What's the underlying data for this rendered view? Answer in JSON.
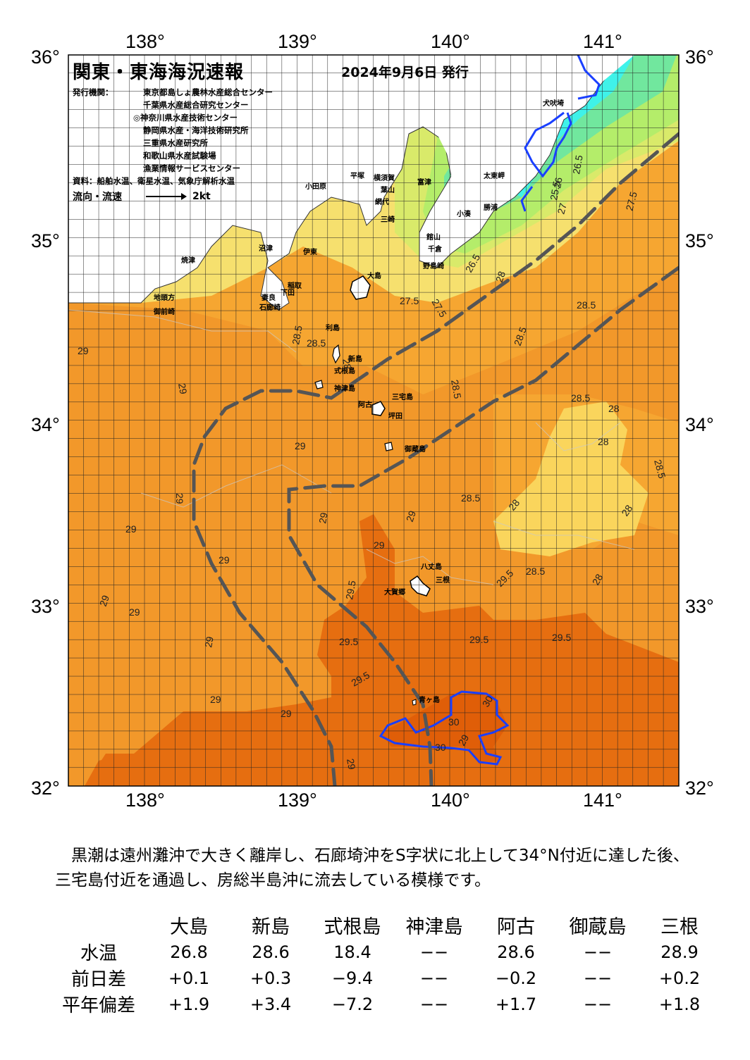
{
  "title": "関東・東海海況速報",
  "issue_date": "2024年9月6日 発行",
  "issuers": {
    "label": "発行機関：",
    "orgs": [
      "東京都島しょ農林水産総合センター",
      "千葉県水産総合研究センター",
      "◎神奈川県水産技術センター",
      "静岡県水産・海洋技術研究所",
      "三重県水産研究所",
      "和歌山県水産試験場",
      "漁業情報サービスセンター"
    ]
  },
  "sources": "資料：船舶水温、衛星水温、気象庁解析水温",
  "legend": {
    "flow_label": "流向・流速",
    "speed_label": "2kt"
  },
  "axes": {
    "lon_ticks": [
      "138°",
      "139°",
      "140°",
      "141°"
    ],
    "lat_ticks": [
      "36°",
      "35°",
      "34°",
      "33°",
      "32°"
    ]
  },
  "colors": {
    "land": "#ffffff",
    "t_lt25": "#3ff2e9",
    "t_25": "#71e79e",
    "t_26": "#b4ed6a",
    "t_27": "#f6e06e",
    "t_28": "#fad55c",
    "t_28_5": "#f6a631",
    "t_29": "#f2982a",
    "t_29_5": "#e66e10",
    "t_30": "#e05e08",
    "kuroshio_axis": "#555555",
    "isotherm_blue": "#1a3fff"
  },
  "place_labels": [
    {
      "id": "inubosaki",
      "text": "犬吠埼"
    },
    {
      "id": "taitomisaki",
      "text": "太東岬"
    },
    {
      "id": "katsuura",
      "text": "勝浦"
    },
    {
      "id": "kominato",
      "text": "小湊"
    },
    {
      "id": "futtsu",
      "text": "富津"
    },
    {
      "id": "yokosuka",
      "text": "横須賀"
    },
    {
      "id": "hayama",
      "text": "葉山"
    },
    {
      "id": "hiratsuka",
      "text": "平塚"
    },
    {
      "id": "odawara",
      "text": "小田原"
    },
    {
      "id": "misaki",
      "text": "三崎"
    },
    {
      "id": "tateyama",
      "text": "館山"
    },
    {
      "id": "chikura",
      "text": "千倉"
    },
    {
      "id": "nojimazaki",
      "text": "野島崎"
    },
    {
      "id": "ajiro",
      "text": "網代"
    },
    {
      "id": "ito",
      "text": "伊東"
    },
    {
      "id": "numazu",
      "text": "沼津"
    },
    {
      "id": "yaizu",
      "text": "焼津"
    },
    {
      "id": "omaezaki",
      "text": "御前崎"
    },
    {
      "id": "chikyukata",
      "text": "地頭方"
    },
    {
      "id": "inatori",
      "text": "稲取"
    },
    {
      "id": "shimoda",
      "text": "下田"
    },
    {
      "id": "mera",
      "text": "妻良"
    },
    {
      "id": "irozaki",
      "text": "石廊崎"
    },
    {
      "id": "oshima",
      "text": "大島"
    },
    {
      "id": "toshima",
      "text": "利島"
    },
    {
      "id": "niijima",
      "text": "新島"
    },
    {
      "id": "shikinejima",
      "text": "式根島"
    },
    {
      "id": "kozushima",
      "text": "神津島"
    },
    {
      "id": "miyakejima",
      "text": "三宅島"
    },
    {
      "id": "ako",
      "text": "阿古"
    },
    {
      "id": "tsubota",
      "text": "坪田"
    },
    {
      "id": "mikurajima",
      "text": "御蔵島"
    },
    {
      "id": "hachijojima",
      "text": "八丈島"
    },
    {
      "id": "hachijo_oga",
      "text": "大賀郷"
    },
    {
      "id": "mitsune",
      "text": "三根"
    },
    {
      "id": "aogashima",
      "text": "青ヶ島"
    }
  ],
  "isotherm_labels": [
    "26.5",
    "26",
    "25.5",
    "27.5",
    "27",
    "26.5",
    "28",
    "27.5",
    "27.5",
    "28.5",
    "28.5",
    "28",
    "28.5",
    "28.5",
    "28.5",
    "28.5",
    "28",
    "28",
    "28",
    "28.5",
    "28",
    "28.5",
    "28",
    "29",
    "29",
    "29",
    "29",
    "29",
    "29",
    "29",
    "29",
    "29",
    "29.5",
    "29",
    "29.5",
    "28.5",
    "29",
    "29.5",
    "29.5",
    "29.5",
    "29",
    "29.5",
    "29",
    "29",
    "30",
    "30",
    "30",
    "29",
    "29"
  ],
  "comment": "　黒潮は遠州灘沖で大きく離岸し、石廊埼沖をS字状に北上して34°N付近に達した後、三宅島付近を通過し、房総半島沖に流去している模様です。",
  "table": {
    "columns": [
      "大島",
      "新島",
      "式根島",
      "神津島",
      "阿古",
      "御蔵島",
      "三根"
    ],
    "rows": [
      {
        "label": "水温",
        "values": [
          "26.8",
          "28.6",
          "18.4",
          "−−",
          "28.6",
          "−−",
          "28.9"
        ]
      },
      {
        "label": "前日差",
        "values": [
          "+0.1",
          "+0.3",
          "−9.4",
          "−−",
          "−0.2",
          "−−",
          "+0.2"
        ]
      },
      {
        "label": "平年偏差",
        "values": [
          "+1.9",
          "+3.4",
          "−7.2",
          "−−",
          "+1.7",
          "−−",
          "+1.8"
        ]
      }
    ]
  }
}
